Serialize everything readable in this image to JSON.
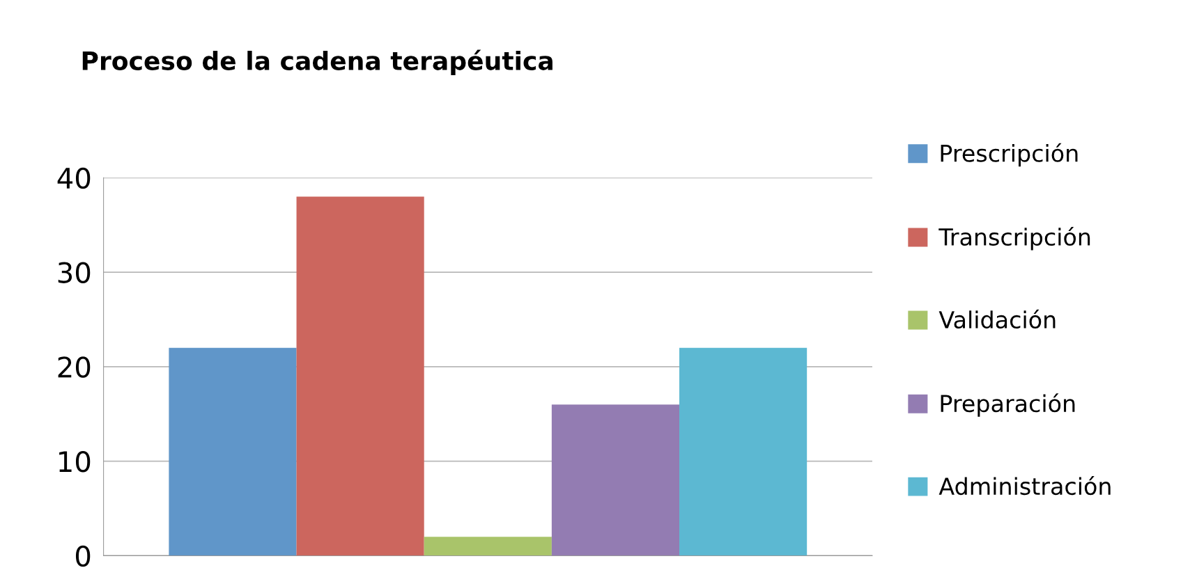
{
  "chart_data": {
    "type": "bar",
    "title": "Proceso de la cadena terapéutica",
    "categories": [
      null
    ],
    "series": [
      {
        "name": "Prescripción",
        "color": "#6096c9",
        "values": [
          22
        ]
      },
      {
        "name": "Transcripción",
        "color": "#cc665e",
        "values": [
          38
        ]
      },
      {
        "name": "Validación",
        "color": "#a9c46a",
        "values": [
          2
        ]
      },
      {
        "name": "Preparación",
        "color": "#937cb2",
        "values": [
          16
        ]
      },
      {
        "name": "Administración",
        "color": "#5cb8d2",
        "values": [
          22
        ]
      }
    ],
    "ylim": [
      0,
      40
    ],
    "yticks": [
      0,
      10,
      20,
      30,
      40
    ],
    "grid": "y",
    "legend": "right"
  }
}
